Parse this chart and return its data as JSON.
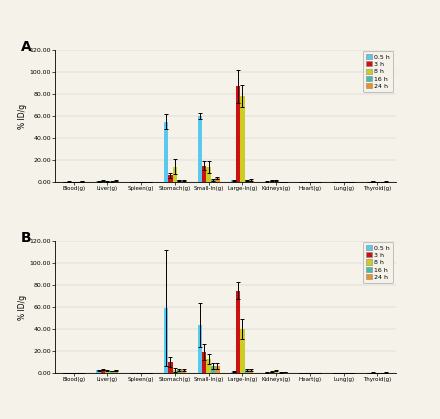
{
  "categories": [
    "Blood(g)",
    "Liver(g)",
    "Spleen(g)",
    "Stomach(g)",
    "Small-In(g)",
    "Large-In(g)",
    "Kidneys(g)",
    "Heart(g)",
    "Lung(g)",
    "Thyroid(g)"
  ],
  "time_labels": [
    "0.5 h",
    "3 h",
    "8 h",
    "16 h",
    "24 h"
  ],
  "colors": [
    "#5bc8f0",
    "#cc1111",
    "#cccc22",
    "#44bbaa",
    "#e8902a"
  ],
  "panel_A": {
    "values": [
      [
        0.3,
        0.5,
        0.1,
        55.0,
        60.0,
        1.5,
        0.3,
        0.1,
        0.1,
        0.2
      ],
      [
        0.4,
        1.2,
        0.2,
        6.0,
        15.0,
        87.0,
        1.0,
        0.2,
        0.1,
        0.5
      ],
      [
        0.3,
        0.6,
        0.1,
        14.0,
        14.0,
        78.0,
        1.5,
        0.1,
        0.1,
        0.2
      ],
      [
        0.2,
        0.4,
        0.1,
        1.5,
        2.0,
        1.5,
        0.3,
        0.1,
        0.1,
        0.1
      ],
      [
        0.5,
        1.2,
        0.2,
        1.5,
        3.5,
        2.0,
        0.3,
        0.1,
        0.1,
        0.4
      ]
    ],
    "errors": [
      [
        0.1,
        0.2,
        0.05,
        7.0,
        3.0,
        0.5,
        0.2,
        0.05,
        0.05,
        0.1
      ],
      [
        0.2,
        0.4,
        0.1,
        2.5,
        4.5,
        15.0,
        0.4,
        0.1,
        0.05,
        0.2
      ],
      [
        0.1,
        0.2,
        0.05,
        7.0,
        5.5,
        10.0,
        0.6,
        0.05,
        0.05,
        0.1
      ],
      [
        0.1,
        0.1,
        0.05,
        0.4,
        0.8,
        0.5,
        0.1,
        0.05,
        0.05,
        0.05
      ],
      [
        0.2,
        0.4,
        0.1,
        0.4,
        1.2,
        0.8,
        0.1,
        0.05,
        0.05,
        0.15
      ]
    ]
  },
  "panel_B": {
    "values": [
      [
        0.2,
        2.5,
        0.1,
        59.0,
        44.0,
        1.0,
        0.5,
        0.1,
        0.1,
        0.2
      ],
      [
        0.2,
        3.0,
        0.2,
        10.0,
        19.0,
        75.0,
        1.0,
        0.2,
        0.1,
        0.3
      ],
      [
        0.1,
        2.0,
        0.1,
        3.0,
        13.0,
        40.0,
        2.0,
        0.1,
        0.1,
        0.1
      ],
      [
        0.1,
        1.5,
        0.1,
        2.5,
        6.5,
        2.5,
        0.3,
        0.1,
        0.1,
        0.1
      ],
      [
        0.2,
        2.5,
        0.2,
        2.5,
        6.5,
        2.5,
        0.7,
        0.1,
        0.1,
        0.3
      ]
    ],
    "errors": [
      [
        0.05,
        0.4,
        0.05,
        53.0,
        20.0,
        0.4,
        0.3,
        0.05,
        0.05,
        0.05
      ],
      [
        0.05,
        0.4,
        0.1,
        4.5,
        7.5,
        7.5,
        0.4,
        0.1,
        0.05,
        0.1
      ],
      [
        0.05,
        0.3,
        0.05,
        1.8,
        4.5,
        9.0,
        0.6,
        0.05,
        0.05,
        0.05
      ],
      [
        0.05,
        0.2,
        0.05,
        1.2,
        2.5,
        0.8,
        0.1,
        0.05,
        0.05,
        0.05
      ],
      [
        0.05,
        0.4,
        0.1,
        1.2,
        2.5,
        0.8,
        0.3,
        0.05,
        0.05,
        0.1
      ]
    ]
  },
  "ylim": [
    0,
    120
  ],
  "yticks": [
    0,
    20,
    40,
    60,
    80,
    100,
    120
  ],
  "ylabel": "% ID/g",
  "background_color": "#f5f2ea",
  "panel_labels": [
    "A",
    "B"
  ]
}
